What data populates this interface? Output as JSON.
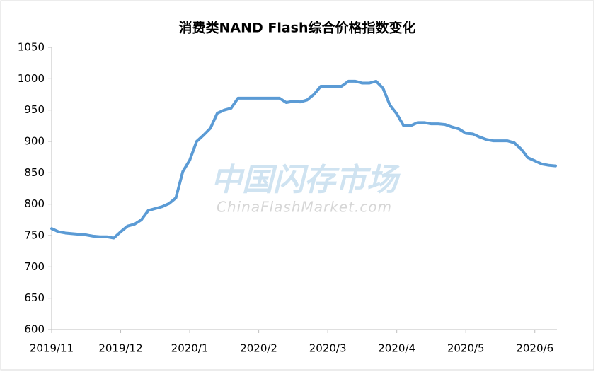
{
  "chart_data": {
    "type": "line",
    "title": "消费类NAND Flash综合价格指数变化",
    "watermark": "中国闪存市场",
    "watermark_sub": "ChinaFlashMarket.com",
    "categories": [
      "2019/11",
      null,
      null,
      null,
      null,
      null,
      null,
      null,
      null,
      null,
      "2019/12",
      null,
      null,
      null,
      null,
      null,
      null,
      null,
      null,
      null,
      "2020/1",
      null,
      null,
      null,
      null,
      null,
      null,
      null,
      null,
      null,
      "2020/2",
      null,
      null,
      null,
      null,
      null,
      null,
      null,
      null,
      null,
      "2020/3",
      null,
      null,
      null,
      null,
      null,
      null,
      null,
      null,
      null,
      "2020/4",
      null,
      null,
      null,
      null,
      null,
      null,
      null,
      null,
      null,
      "2020/5",
      null,
      null,
      null,
      null,
      null,
      null,
      null,
      null,
      null,
      "2020/6",
      null,
      null,
      null
    ],
    "series": [
      {
        "name": "消费类NAND Flash综合价格指数",
        "color": "#5b9bd5",
        "values": [
          761,
          756,
          754,
          753,
          752,
          751,
          749,
          748,
          748,
          746,
          756,
          765,
          768,
          775,
          790,
          793,
          796,
          801,
          810,
          852,
          870,
          900,
          910,
          921,
          945,
          950,
          953,
          969,
          969,
          969,
          969,
          969,
          969,
          969,
          962,
          964,
          963,
          966,
          975,
          988,
          988,
          988,
          988,
          996,
          996,
          993,
          993,
          996,
          985,
          958,
          944,
          925,
          925,
          930,
          930,
          928,
          928,
          927,
          923,
          920,
          913,
          912,
          907,
          903,
          901,
          901,
          901,
          898,
          888,
          874,
          869,
          864,
          862,
          861
        ]
      }
    ],
    "ylim": [
      600,
      1050
    ],
    "yticks": [
      600,
      650,
      700,
      750,
      800,
      850,
      900,
      950,
      1000,
      1050
    ],
    "grid": false
  }
}
